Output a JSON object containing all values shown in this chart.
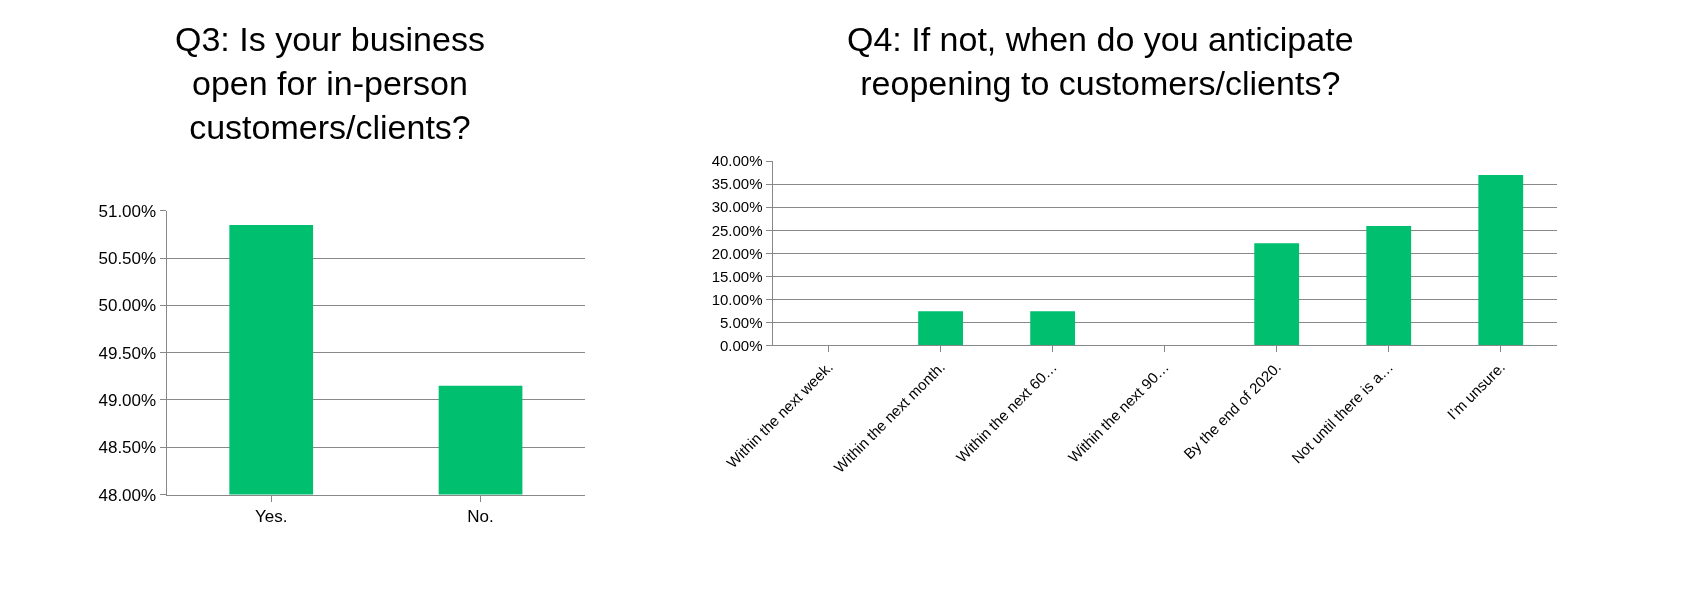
{
  "chart_data": [
    {
      "type": "bar",
      "title": "Q3: Is your business open for in-person customers/clients?",
      "categories": [
        "Yes.",
        "No."
      ],
      "values": [
        50.85,
        49.15
      ],
      "color": "#00bf6f",
      "ylim": [
        48,
        51
      ],
      "yticks": [
        {
          "value": 48,
          "label": "48.00%"
        },
        {
          "value": 48.5,
          "label": "48.50%"
        },
        {
          "value": 49,
          "label": "49.00%"
        },
        {
          "value": 49.5,
          "label": "49.50%"
        },
        {
          "value": 50,
          "label": "50.00%"
        },
        {
          "value": 50.5,
          "label": "50.50%"
        },
        {
          "value": 51,
          "label": "51.00%"
        }
      ],
      "grid": "y",
      "legend": false
    },
    {
      "type": "bar",
      "title": "Q4: If not, when do you anticipate reopening to customers/clients?",
      "categories": [
        "Within the next week.",
        "Within the next month.",
        "Within the next 60…",
        "Within the next 90…",
        "By the end of 2020.",
        "Not until there is a…",
        "I’m unsure."
      ],
      "values": [
        0,
        7.4,
        7.4,
        0,
        22.2,
        25.9,
        37.0
      ],
      "color": "#00bf6f",
      "ylim": [
        0,
        40
      ],
      "yticks": [
        {
          "value": 0,
          "label": "0.00%"
        },
        {
          "value": 5,
          "label": "5.00%"
        },
        {
          "value": 10,
          "label": "10.00%"
        },
        {
          "value": 15,
          "label": "15.00%"
        },
        {
          "value": 20,
          "label": "20.00%"
        },
        {
          "value": 25,
          "label": "25.00%"
        },
        {
          "value": 30,
          "label": "30.00%"
        },
        {
          "value": 35,
          "label": "35.00%"
        },
        {
          "value": 40,
          "label": "40.00%"
        }
      ],
      "grid": "y",
      "legend": false
    }
  ]
}
